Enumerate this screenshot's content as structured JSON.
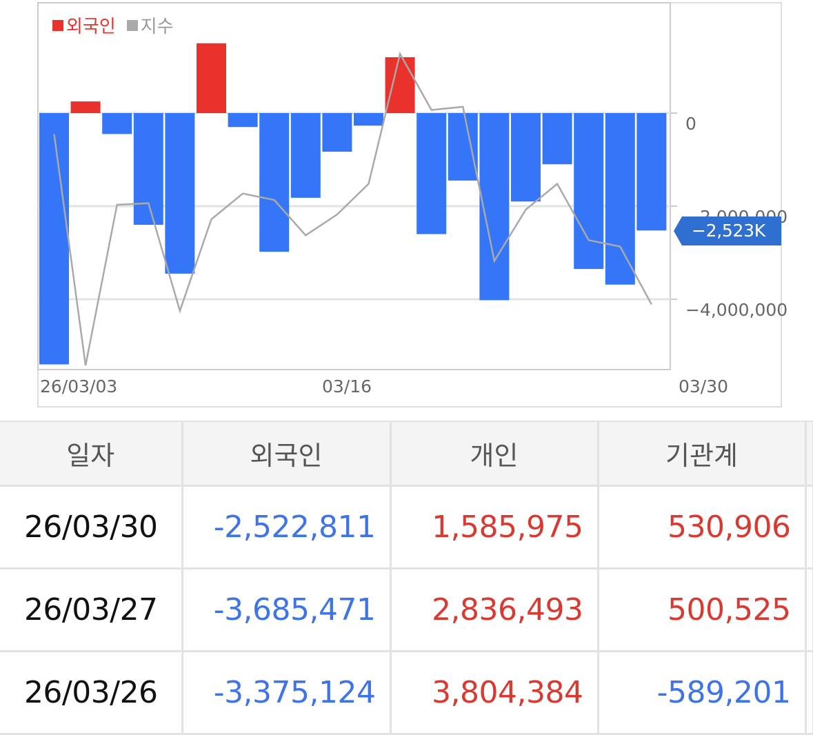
{
  "chart_data": {
    "type": "bar",
    "legend": [
      {
        "label": "외국인",
        "color": "#e8322b"
      },
      {
        "label": "지수",
        "color": "#a9a9a9"
      }
    ],
    "x_tick_labels": [
      "26/03/03",
      "03/16",
      "03/30"
    ],
    "y_tick_labels": [
      "0",
      "−2,000,000",
      "−4,000,000"
    ],
    "current_value_label": "−2,523K",
    "ylim": [
      -5450000,
      2400000
    ],
    "positive_color": "#e8322b",
    "negative_color": "#3476f7",
    "series": [
      {
        "type": "bar",
        "values": [
          -5400000,
          250000,
          -450000,
          -2400000,
          -3450000,
          1500000,
          -300000,
          -2980000,
          -1820000,
          -830000,
          -270000,
          1200000,
          -2600000,
          -1450000,
          -4020000,
          -1900000,
          -1100000,
          -3350000,
          -3685471,
          -2522811
        ]
      },
      {
        "type": "line",
        "color": "#a9a9a9",
        "values": [
          0.72,
          0.0,
          0.5,
          0.505,
          0.17,
          0.455,
          0.535,
          0.515,
          0.405,
          0.47,
          0.565,
          0.97,
          0.795,
          0.805,
          0.325,
          0.485,
          0.565,
          0.39,
          0.37,
          0.19
        ]
      }
    ]
  },
  "table": {
    "headers": [
      "일자",
      "외국인",
      "개인",
      "기관계"
    ],
    "rows": [
      {
        "date": "26/03/30",
        "foreign": "-2,522,811",
        "individual": "1,585,975",
        "institution": "530,906"
      },
      {
        "date": "26/03/27",
        "foreign": "-3,685,471",
        "individual": "2,836,493",
        "institution": "500,525"
      },
      {
        "date": "26/03/26",
        "foreign": "-3,375,124",
        "individual": "3,804,384",
        "institution": "-589,201"
      }
    ]
  }
}
